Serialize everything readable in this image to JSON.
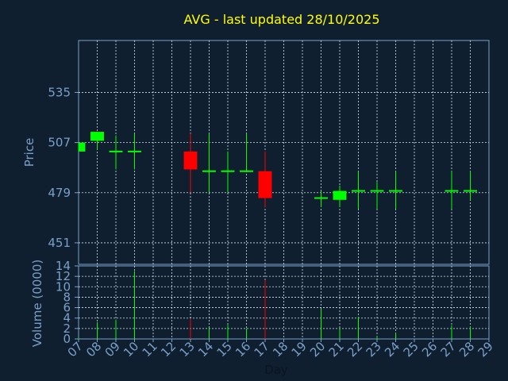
{
  "chart_data": [
    {
      "type": "candlestick",
      "title": "AVG - last updated 28/10/2025",
      "ylabel": "Price",
      "xlabel": "Day",
      "x_ticks": [
        "07",
        "08",
        "09",
        "10",
        "11",
        "12",
        "13",
        "14",
        "15",
        "16",
        "17",
        "18",
        "19",
        "20",
        "21",
        "22",
        "23",
        "24",
        "25",
        "26",
        "27",
        "28",
        "29"
      ],
      "y_ticks": [
        451,
        479,
        507,
        535
      ],
      "ylim": [
        439,
        564
      ],
      "grid": true,
      "up_color": "#00ff00",
      "down_color": "#ff0000",
      "candles": [
        {
          "day": "07",
          "open": 502,
          "close": 507,
          "high": 507,
          "low": 502
        },
        {
          "day": "08",
          "open": 508,
          "close": 513,
          "high": 513,
          "low": 503
        },
        {
          "day": "09",
          "open": 502,
          "close": 502,
          "high": 511,
          "low": 492
        },
        {
          "day": "10",
          "open": 502,
          "close": 502,
          "high": 512,
          "low": 492
        },
        {
          "day": "13",
          "open": 502,
          "close": 492,
          "high": 512,
          "low": 479
        },
        {
          "day": "14",
          "open": 491,
          "close": 491,
          "high": 512,
          "low": 479
        },
        {
          "day": "15",
          "open": 491,
          "close": 491,
          "high": 502,
          "low": 479
        },
        {
          "day": "16",
          "open": 491,
          "close": 491,
          "high": 512,
          "low": 491
        },
        {
          "day": "17",
          "open": 491,
          "close": 476,
          "high": 502,
          "low": 471
        },
        {
          "day": "20",
          "open": 476,
          "close": 476,
          "high": 480,
          "low": 471
        },
        {
          "day": "21",
          "open": 475,
          "close": 480,
          "high": 483,
          "low": 471
        },
        {
          "day": "22",
          "open": 480,
          "close": 480,
          "high": 491,
          "low": 470
        },
        {
          "day": "23",
          "open": 480,
          "close": 480,
          "high": 485,
          "low": 470
        },
        {
          "day": "24",
          "open": 480,
          "close": 480,
          "high": 491,
          "low": 470
        },
        {
          "day": "27",
          "open": 480,
          "close": 480,
          "high": 491,
          "low": 470
        },
        {
          "day": "28",
          "open": 480,
          "close": 480,
          "high": 491,
          "low": 475
        }
      ]
    },
    {
      "type": "bar",
      "ylabel": "Volume (0000)",
      "xlabel": "Day",
      "x_ticks": [
        "07",
        "08",
        "09",
        "10",
        "11",
        "12",
        "13",
        "14",
        "15",
        "16",
        "17",
        "18",
        "19",
        "20",
        "21",
        "22",
        "23",
        "24",
        "25",
        "26",
        "27",
        "28",
        "29"
      ],
      "y_ticks": [
        0,
        2,
        4,
        6,
        8,
        10,
        12,
        14
      ],
      "ylim": [
        0,
        14
      ],
      "grid": true,
      "bars": [
        {
          "day": "07",
          "value": 0.3,
          "color": "#00ff00"
        },
        {
          "day": "08",
          "value": 3.2,
          "color": "#00ff00"
        },
        {
          "day": "09",
          "value": 3.7,
          "color": "#00ff00"
        },
        {
          "day": "10",
          "value": 13.0,
          "color": "#00ff00"
        },
        {
          "day": "13",
          "value": 3.8,
          "color": "#ff0000"
        },
        {
          "day": "14",
          "value": 2.2,
          "color": "#00ff00"
        },
        {
          "day": "15",
          "value": 2.7,
          "color": "#00ff00"
        },
        {
          "day": "16",
          "value": 2.0,
          "color": "#00ff00"
        },
        {
          "day": "17",
          "value": 11.3,
          "color": "#ff0000"
        },
        {
          "day": "20",
          "value": 5.8,
          "color": "#00ff00"
        },
        {
          "day": "21",
          "value": 2.1,
          "color": "#00ff00"
        },
        {
          "day": "22",
          "value": 4.2,
          "color": "#00ff00"
        },
        {
          "day": "23",
          "value": 0.5,
          "color": "#00ff00"
        },
        {
          "day": "24",
          "value": 1.1,
          "color": "#00ff00"
        },
        {
          "day": "27",
          "value": 2.6,
          "color": "#00ff00"
        },
        {
          "day": "28",
          "value": 2.4,
          "color": "#00ff00"
        }
      ]
    }
  ]
}
